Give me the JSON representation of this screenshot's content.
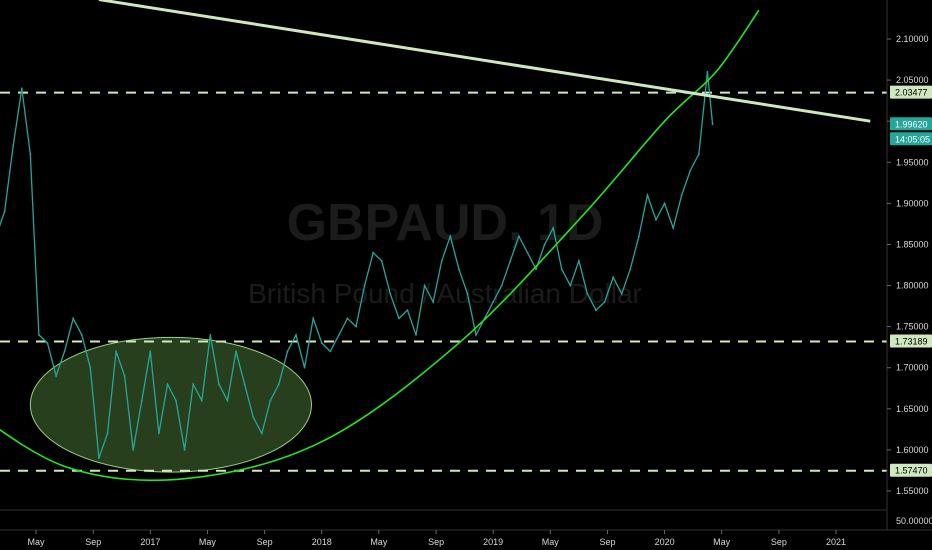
{
  "chart_data": {
    "type": "line",
    "symbol": "GBPAUD",
    "interval": "1D",
    "symbol_interval": "GBPAUD, 1D",
    "description": "British Pound / Australian Dollar",
    "ylim": [
      1.52,
      2.125
    ],
    "y_ticks": [
      1.55,
      1.6,
      1.65,
      1.7,
      1.75,
      1.8,
      1.85,
      1.9,
      1.95,
      2.0,
      2.05,
      2.1
    ],
    "y_tick_labels": [
      "1.55000",
      "1.60000",
      "1.65000",
      "1.70000",
      "1.75000",
      "1.80000",
      "1.85000",
      "1.90000",
      "1.95000",
      "2.00000",
      "2.05000",
      "2.10000"
    ],
    "x_ticks": [
      2016.333,
      2016.667,
      2017.0,
      2017.333,
      2017.667,
      2018.0,
      2018.333,
      2018.667,
      2019.0,
      2019.333,
      2019.667,
      2020.0,
      2020.333,
      2020.667,
      2021.0
    ],
    "x_tick_labels": [
      "May",
      "Sep",
      "2017",
      "May",
      "Sep",
      "2018",
      "May",
      "Sep",
      "2019",
      "May",
      "Sep",
      "2020",
      "May",
      "Sep",
      "2021"
    ],
    "series": [
      {
        "color": "#26a69a",
        "x": [
          2016.0,
          2016.05,
          2016.1,
          2016.15,
          2016.2,
          2016.25,
          2016.3,
          2016.35,
          2016.4,
          2016.45,
          2016.5,
          2016.55,
          2016.6,
          2016.65,
          2016.7,
          2016.75,
          2016.8,
          2016.85,
          2016.9,
          2016.95,
          2017.0,
          2017.05,
          2017.1,
          2017.15,
          2017.2,
          2017.25,
          2017.3,
          2017.35,
          2017.4,
          2017.45,
          2017.5,
          2017.55,
          2017.6,
          2017.65,
          2017.7,
          2017.75,
          2017.8,
          2017.85,
          2017.9,
          2017.95,
          2018.0,
          2018.05,
          2018.1,
          2018.15,
          2018.2,
          2018.25,
          2018.3,
          2018.35,
          2018.4,
          2018.45,
          2018.5,
          2018.55,
          2018.6,
          2018.65,
          2018.7,
          2018.75,
          2018.8,
          2018.85,
          2018.9,
          2018.95,
          2019.0,
          2019.05,
          2019.1,
          2019.15,
          2019.2,
          2019.25,
          2019.3,
          2019.35,
          2019.4,
          2019.45,
          2019.5,
          2019.55,
          2019.6,
          2019.65,
          2019.7,
          2019.75,
          2019.8,
          2019.85,
          2019.9,
          2019.95,
          2020.0,
          2020.05,
          2020.1,
          2020.15,
          2020.2,
          2020.25,
          2020.28
        ],
        "y": [
          1.95,
          1.91,
          1.86,
          1.89,
          1.97,
          2.04,
          1.96,
          1.74,
          1.73,
          1.69,
          1.72,
          1.76,
          1.74,
          1.7,
          1.59,
          1.62,
          1.72,
          1.69,
          1.6,
          1.66,
          1.72,
          1.62,
          1.68,
          1.66,
          1.6,
          1.68,
          1.66,
          1.74,
          1.68,
          1.66,
          1.72,
          1.68,
          1.64,
          1.62,
          1.66,
          1.68,
          1.72,
          1.74,
          1.7,
          1.76,
          1.73,
          1.72,
          1.74,
          1.76,
          1.75,
          1.8,
          1.84,
          1.83,
          1.79,
          1.76,
          1.77,
          1.74,
          1.8,
          1.78,
          1.83,
          1.86,
          1.82,
          1.79,
          1.74,
          1.76,
          1.78,
          1.8,
          1.83,
          1.86,
          1.84,
          1.82,
          1.85,
          1.87,
          1.82,
          1.8,
          1.83,
          1.79,
          1.77,
          1.78,
          1.81,
          1.79,
          1.82,
          1.86,
          1.91,
          1.88,
          1.9,
          1.87,
          1.91,
          1.94,
          1.96,
          2.06,
          1.9962
        ]
      }
    ],
    "horizontal_levels": [
      {
        "value": 2.03477,
        "label": "2.03477"
      },
      {
        "value": 1.73189,
        "label": "1.73189"
      },
      {
        "value": 1.5747,
        "label": "1.57470"
      }
    ],
    "last_price": "1.99620",
    "countdown": "14:05:05",
    "volume_label": "50.00000",
    "trendline": {
      "color": "#cfe8c0",
      "x": [
        2016.7,
        2021.2
      ],
      "y": [
        2.148,
        2.0
      ]
    },
    "curve": {
      "color": "#22e622",
      "x": [
        2015.88,
        2016.5,
        2017.2,
        2018.0,
        2018.8,
        2019.5,
        2020.0,
        2020.3,
        2020.55
      ],
      "y": [
        1.66,
        1.58,
        1.565,
        1.61,
        1.73,
        1.88,
        2.0,
        2.06,
        2.135
      ]
    },
    "ellipse": {
      "fill": "#2e4a22",
      "stroke": "#9ad07f",
      "cx": 2017.12,
      "cy": 1.655,
      "rx": 0.82,
      "ry": 0.082
    },
    "level_color": "#cfe8c0",
    "grid": false
  }
}
